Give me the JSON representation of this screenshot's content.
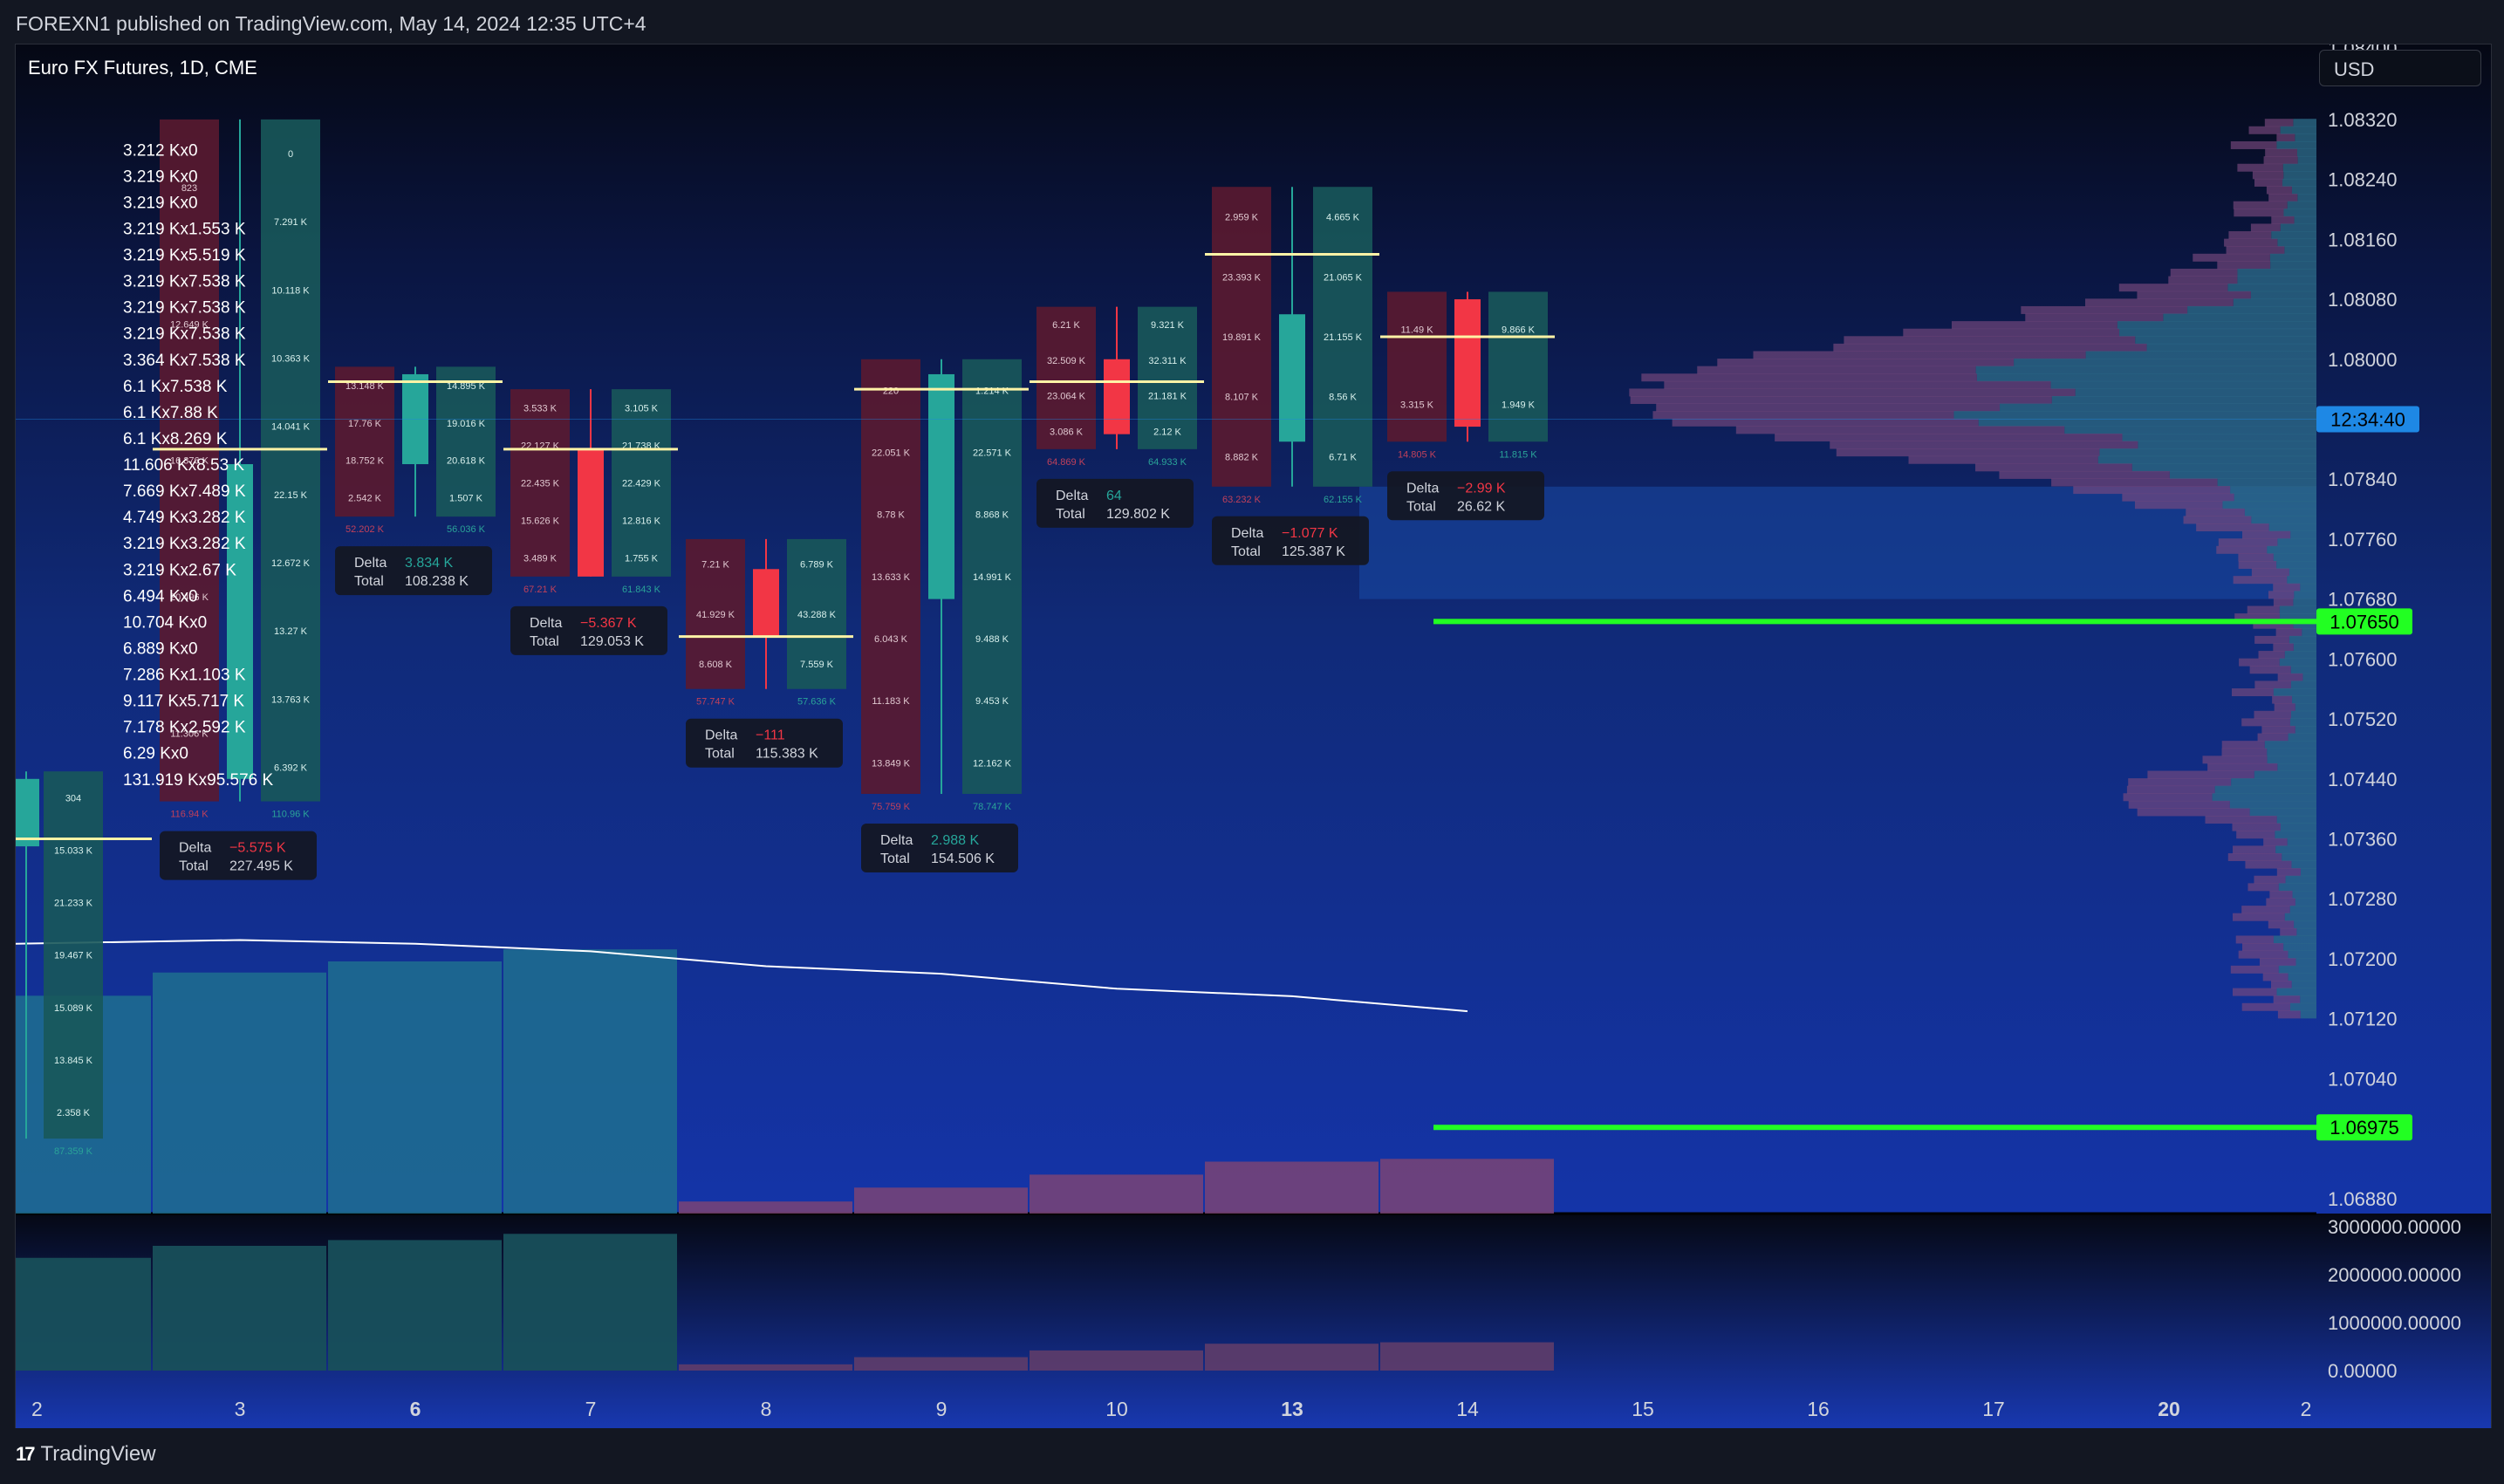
{
  "header": {
    "published_text": "FOREXN1 published on TradingView.com, May 14, 2024 12:35 UTC+4"
  },
  "chart_header": {
    "symbol": "Euro FX Futures, 1D, CME",
    "currency": "USD"
  },
  "footer": {
    "brand": "TradingView",
    "logo_icon": "tradingview-logo-icon"
  },
  "colors": {
    "bull": "#26a69a",
    "bear": "#f23645",
    "poc_line": "#fff3a6",
    "level_line": "#22ff22",
    "price_label_bg": "#1e88e5"
  },
  "price_axis": {
    "labels": [
      "1.08320",
      "1.08240",
      "1.08160",
      "1.08080",
      "1.08000",
      "1.07840",
      "1.07760",
      "1.07680",
      "1.07600",
      "1.07520",
      "1.07440",
      "1.07360",
      "1.07280",
      "1.07200",
      "1.07120",
      "1.07040",
      "1.06880"
    ],
    "partial_top": "1.08400"
  },
  "current_label": {
    "value": "12:34:40",
    "price": 1.0792
  },
  "levels": [
    {
      "value": "1.07650",
      "price": 1.0765
    },
    {
      "value": "1.06975",
      "price": 1.06975
    }
  ],
  "volume_axis": {
    "labels": [
      "3000000.00000",
      "2000000.00000",
      "1000000.00000",
      "0.00000"
    ]
  },
  "time_axis": {
    "labels": [
      {
        "text": "2",
        "bold": false
      },
      {
        "text": "3",
        "bold": false
      },
      {
        "text": "6",
        "bold": true
      },
      {
        "text": "7",
        "bold": false
      },
      {
        "text": "8",
        "bold": false
      },
      {
        "text": "9",
        "bold": false
      },
      {
        "text": "10",
        "bold": false
      },
      {
        "text": "13",
        "bold": true
      },
      {
        "text": "14",
        "bold": false
      },
      {
        "text": "15",
        "bold": false
      },
      {
        "text": "16",
        "bold": false
      },
      {
        "text": "17",
        "bold": false
      },
      {
        "text": "20",
        "bold": true
      },
      {
        "text": "2",
        "bold": false
      }
    ]
  },
  "ladder": [
    "3.212 Kx0",
    "3.219 Kx0",
    "3.219 Kx0",
    "3.219 Kx1.553 K",
    "3.219 Kx5.519 K",
    "3.219 Kx7.538 K",
    "3.219 Kx7.538 K",
    "3.219 Kx7.538 K",
    "3.364 Kx7.538 K",
    "6.1 Kx7.538 K",
    "6.1 Kx7.88 K",
    "6.1 Kx8.269 K",
    "11.606 Kx8.53 K",
    "7.669 Kx7.489 K",
    "4.749 Kx3.282 K",
    "3.219 Kx3.282 K",
    "3.219 Kx2.67 K",
    "6.494 Kx0",
    "10.704 Kx0",
    "6.889 Kx0",
    "7.286 Kx1.103 K",
    "9.117 Kx5.717 K",
    "7.178 Kx2.592 K",
    "6.29 Kx0",
    "131.919 Kx95.576 K"
  ],
  "chart_data": {
    "type": "candlestick-footprint",
    "ylim": [
      1.0686,
      1.0842
    ],
    "candles": [
      {
        "date": "2",
        "open": 1.0735,
        "high": 1.0745,
        "low": 1.0696,
        "close": 1.0744,
        "direction": "up",
        "sell": [],
        "buy": [
          "304",
          "15.033 K",
          "21.233 K",
          "19.467 K",
          "15.089 K",
          "13.845 K",
          "2.358 K"
        ],
        "sell_total": "",
        "buy_total": "87.359 K",
        "poc": 1.0736
      },
      {
        "date": "3",
        "open": 1.0744,
        "high": 1.0832,
        "low": 1.0741,
        "close": 1.0786,
        "direction": "up",
        "sell": [
          "823",
          "12.649 K",
          "16.376 K",
          "20.496 K",
          "11.306 K"
        ],
        "buy": [
          "0",
          "7.291 K",
          "10.118 K",
          "10.363 K",
          "14.041 K",
          "22.15 K",
          "12.672 K",
          "13.27 K",
          "13.763 K",
          "6.392 K"
        ],
        "sell_total": "116.94 K",
        "buy_total": "110.96 K",
        "poc": 1.0788,
        "delta": "−5.575 K",
        "total": "227.495 K",
        "delta_sign": "neg"
      },
      {
        "date": "6",
        "open": 1.0786,
        "high": 1.0799,
        "low": 1.0779,
        "close": 1.0798,
        "direction": "up",
        "sell": [
          "13.148 K",
          "17.76 K",
          "18.752 K",
          "2.542 K"
        ],
        "buy": [
          "14.895 K",
          "19.016 K",
          "20.618 K",
          "1.507 K"
        ],
        "sell_total": "52.202 K",
        "buy_total": "56.036 K",
        "poc": 1.0797,
        "delta": "3.834 K",
        "total": "108.238 K",
        "delta_sign": "pos"
      },
      {
        "date": "7",
        "open": 1.0788,
        "high": 1.0796,
        "low": 1.0771,
        "close": 1.0771,
        "direction": "down",
        "sell": [
          "3.533 K",
          "22.127 K",
          "22.435 K",
          "15.626 K",
          "3.489 K"
        ],
        "buy": [
          "3.105 K",
          "21.738 K",
          "22.429 K",
          "12.816 K",
          "1.755 K"
        ],
        "sell_total": "67.21 K",
        "buy_total": "61.843 K",
        "poc": 1.0788,
        "delta": "−5.367 K",
        "total": "129.053 K",
        "delta_sign": "neg"
      },
      {
        "date": "8",
        "open": 1.0772,
        "high": 1.0776,
        "low": 1.0756,
        "close": 1.0763,
        "direction": "down",
        "sell": [
          "7.21 K",
          "41.929 K",
          "8.608 K"
        ],
        "buy": [
          "6.789 K",
          "43.288 K",
          "7.559 K"
        ],
        "sell_total": "57.747 K",
        "buy_total": "57.636 K",
        "poc": 1.0763,
        "delta": "−111",
        "total": "115.383 K",
        "delta_sign": "neg"
      },
      {
        "date": "9",
        "open": 1.0768,
        "high": 1.08,
        "low": 1.0742,
        "close": 1.0798,
        "direction": "up",
        "sell": [
          "220",
          "22.051 K",
          "8.78 K",
          "13.633 K",
          "6.043 K",
          "11.183 K",
          "13.849 K"
        ],
        "buy": [
          "1.214 K",
          "22.571 K",
          "8.868 K",
          "14.991 K",
          "9.488 K",
          "9.453 K",
          "12.162 K"
        ],
        "sell_total": "75.759 K",
        "buy_total": "78.747 K",
        "poc": 1.0796,
        "delta": "2.988 K",
        "total": "154.506 K",
        "delta_sign": "pos"
      },
      {
        "date": "10",
        "open": 1.08,
        "high": 1.0807,
        "low": 1.0788,
        "close": 1.079,
        "direction": "down",
        "sell": [
          "6.21 K",
          "32.509 K",
          "23.064 K",
          "3.086 K"
        ],
        "buy": [
          "9.321 K",
          "32.311 K",
          "21.181 K",
          "2.12 K"
        ],
        "sell_total": "64.869 K",
        "buy_total": "64.933 K",
        "poc": 1.0797,
        "delta": "64",
        "total": "129.802 K",
        "delta_sign": "pos"
      },
      {
        "date": "13",
        "open": 1.0789,
        "high": 1.0823,
        "low": 1.0783,
        "close": 1.0806,
        "direction": "up",
        "sell": [
          "2.959 K",
          "23.393 K",
          "19.891 K",
          "8.107 K",
          "8.882 K"
        ],
        "buy": [
          "4.665 K",
          "21.065 K",
          "21.155 K",
          "8.56 K",
          "6.71 K"
        ],
        "sell_total": "63.232 K",
        "buy_total": "62.155 K",
        "poc": 1.0814,
        "delta": "−1.077 K",
        "total": "125.387 K",
        "delta_sign": "neg"
      },
      {
        "date": "14",
        "open": 1.0808,
        "high": 1.0809,
        "low": 1.0789,
        "close": 1.0791,
        "direction": "down",
        "sell": [
          "11.49 K",
          "3.315 K"
        ],
        "buy": [
          "9.866 K",
          "1.949 K"
        ],
        "sell_total": "14.805 K",
        "buy_total": "11.815 K",
        "poc": 1.0803,
        "delta": "−2.99 K",
        "total": "26.62 K",
        "delta_sign": "neg"
      }
    ],
    "moving_average": [
      1.0722,
      1.07225,
      1.0722,
      1.0721,
      1.0719,
      1.0718,
      1.0716,
      1.0715,
      1.0713
    ],
    "volume": {
      "ylim": [
        0,
        3200000
      ],
      "bars": [
        {
          "date": "2",
          "value": 2350000,
          "direction": "up"
        },
        {
          "date": "3",
          "value": 2600000,
          "direction": "up"
        },
        {
          "date": "6",
          "value": 2720000,
          "direction": "up"
        },
        {
          "date": "7",
          "value": 2850000,
          "direction": "up"
        },
        {
          "date": "8",
          "value": 130000,
          "direction": "down"
        },
        {
          "date": "9",
          "value": 280000,
          "direction": "down"
        },
        {
          "date": "10",
          "value": 420000,
          "direction": "down"
        },
        {
          "date": "13",
          "value": 560000,
          "direction": "down"
        },
        {
          "date": "14",
          "value": 590000,
          "direction": "down"
        }
      ]
    },
    "volume_profile": {
      "value_area": [
        1.0768,
        1.0783
      ]
    }
  }
}
